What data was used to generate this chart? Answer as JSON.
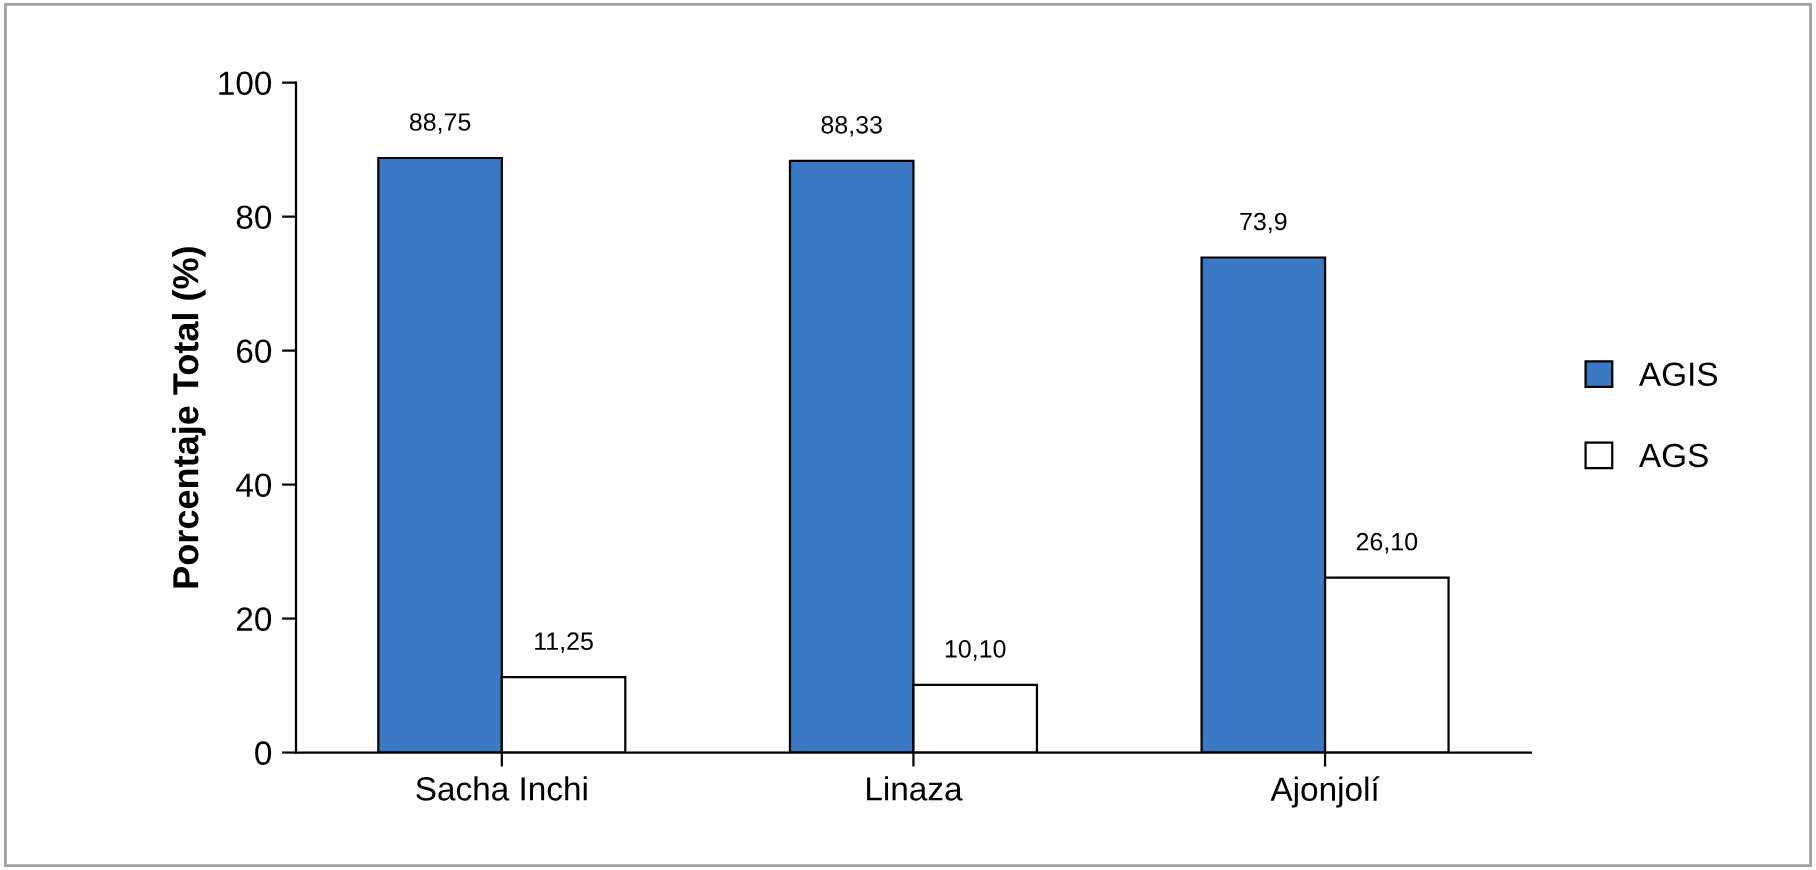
{
  "chart_data": {
    "type": "bar",
    "ylabel": "Porcentaje Total (%)",
    "categories": [
      "Sacha Inchi",
      "Linaza",
      "Ajonjolí"
    ],
    "series": [
      {
        "name": "AGIS",
        "color": "#3a78c4",
        "values": [
          88.75,
          88.33,
          73.9
        ],
        "value_labels": [
          "88,75",
          "88,33",
          "73,9"
        ]
      },
      {
        "name": "AGS",
        "color": "#ffffff",
        "values": [
          11.25,
          10.1,
          26.1
        ],
        "value_labels": [
          "11,25",
          "10,10",
          "26,10"
        ]
      }
    ],
    "ylim": [
      0,
      100
    ],
    "yticks": [
      0,
      20,
      40,
      60,
      80,
      100
    ],
    "grid": false,
    "legend": "right"
  }
}
